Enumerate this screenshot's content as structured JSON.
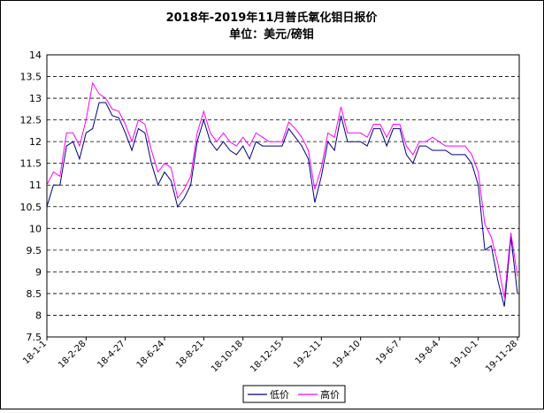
{
  "chart_data": {
    "type": "line",
    "title": "2018年-2019年11月普氏氧化钼日报价",
    "subtitle": "单位：美元/磅钼",
    "categories": [
      "18-1-1",
      null,
      null,
      null,
      null,
      null,
      "18-2-28",
      null,
      null,
      null,
      null,
      null,
      "18-4-27",
      null,
      null,
      null,
      null,
      null,
      "18-6-24",
      null,
      null,
      null,
      null,
      null,
      "18-8-21",
      null,
      null,
      null,
      null,
      null,
      "18-10-18",
      null,
      null,
      null,
      null,
      null,
      "18-12-15",
      null,
      null,
      null,
      null,
      null,
      "19-2-11",
      null,
      null,
      null,
      null,
      null,
      "19-4-10",
      null,
      null,
      null,
      null,
      null,
      "19-6-7",
      null,
      null,
      null,
      null,
      null,
      "19-8-4",
      null,
      null,
      null,
      null,
      null,
      "19-10-1",
      null,
      null,
      null,
      null,
      null,
      "19-11-28"
    ],
    "series": [
      {
        "name": "低价",
        "color": "#000080",
        "values": [
          10.5,
          11.0,
          11.0,
          11.9,
          12.0,
          11.6,
          12.2,
          12.3,
          12.9,
          12.9,
          12.6,
          12.55,
          12.2,
          11.8,
          12.3,
          12.2,
          11.5,
          11.0,
          11.3,
          11.1,
          10.5,
          10.7,
          11.0,
          12.0,
          12.5,
          12.0,
          11.8,
          12.0,
          11.8,
          11.7,
          11.9,
          11.6,
          12.0,
          11.9,
          11.9,
          11.9,
          11.9,
          12.3,
          12.1,
          11.9,
          11.6,
          10.6,
          11.2,
          12.0,
          11.8,
          12.6,
          12.0,
          12.0,
          12.0,
          11.9,
          12.3,
          12.3,
          11.9,
          12.3,
          12.3,
          11.7,
          11.5,
          11.9,
          11.9,
          11.8,
          11.8,
          11.8,
          11.7,
          11.7,
          11.7,
          11.5,
          11.0,
          9.5,
          9.6,
          8.8,
          8.2,
          9.8,
          8.5
        ]
      },
      {
        "name": "高价",
        "color": "#ff00ff",
        "values": [
          11.0,
          11.3,
          11.2,
          12.2,
          12.2,
          11.9,
          12.5,
          13.35,
          13.1,
          13.0,
          12.75,
          12.7,
          12.4,
          12.0,
          12.5,
          12.4,
          11.8,
          11.3,
          11.5,
          11.4,
          10.7,
          10.9,
          11.2,
          12.2,
          12.7,
          12.2,
          12.0,
          12.2,
          12.0,
          11.9,
          12.1,
          11.9,
          12.2,
          12.1,
          12.0,
          12.0,
          12.0,
          12.45,
          12.3,
          12.1,
          11.8,
          10.9,
          11.4,
          12.2,
          12.1,
          12.8,
          12.2,
          12.2,
          12.2,
          12.1,
          12.4,
          12.4,
          12.1,
          12.4,
          12.4,
          11.9,
          11.7,
          12.0,
          12.0,
          12.1,
          12.0,
          11.9,
          11.9,
          11.9,
          11.9,
          11.7,
          11.3,
          10.1,
          9.8,
          9.2,
          8.4,
          9.9,
          8.9
        ]
      }
    ],
    "ylim": [
      7.5,
      14
    ],
    "yticks": [
      7.5,
      8,
      8.5,
      9,
      9.5,
      10,
      10.5,
      11,
      11.5,
      12,
      12.5,
      13,
      13.5,
      14
    ],
    "grid": true
  }
}
